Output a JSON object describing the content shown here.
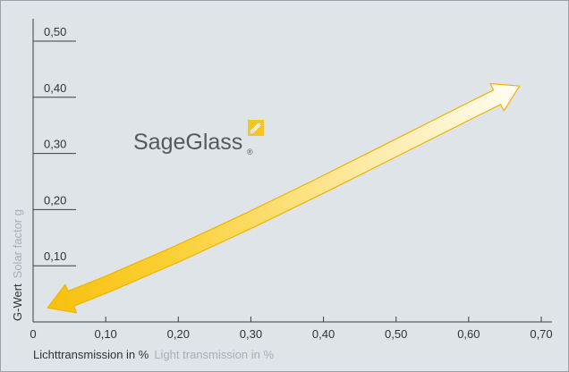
{
  "chart_data": {
    "type": "line",
    "xlabel": "Lichttransmission in %",
    "xlabel_en": "Light transmission in %",
    "ylabel": "G-Wert",
    "ylabel_en": "Solar factor g",
    "xlim": [
      0,
      0.72
    ],
    "ylim": [
      0,
      0.53
    ],
    "x_ticks": [
      "0",
      "0,10",
      "0,20",
      "0,30",
      "0,40",
      "0,50",
      "0,60",
      "0,70"
    ],
    "x_tick_values": [
      0,
      0.1,
      0.2,
      0.3,
      0.4,
      0.5,
      0.6,
      0.7
    ],
    "y_ticks": [
      "0,10",
      "0,20",
      "0,30",
      "0,40",
      "0,50"
    ],
    "y_tick_values": [
      0.1,
      0.2,
      0.3,
      0.4,
      0.5
    ],
    "series": [
      {
        "x": [
          0.02,
          0.1,
          0.2,
          0.3,
          0.4,
          0.5,
          0.6,
          0.67
        ],
        "y": [
          0.025,
          0.066,
          0.122,
          0.182,
          0.245,
          0.31,
          0.375,
          0.42
        ]
      }
    ],
    "grid": false,
    "double_headed_arrow": true,
    "colors": {
      "arrow_light": "#fffbe8",
      "arrow_dark": "#f9c21a",
      "arrow_outline": "#f0b400"
    }
  },
  "logo": {
    "text": "SageGlass",
    "registered": "®",
    "accent": "#f7c51f"
  }
}
